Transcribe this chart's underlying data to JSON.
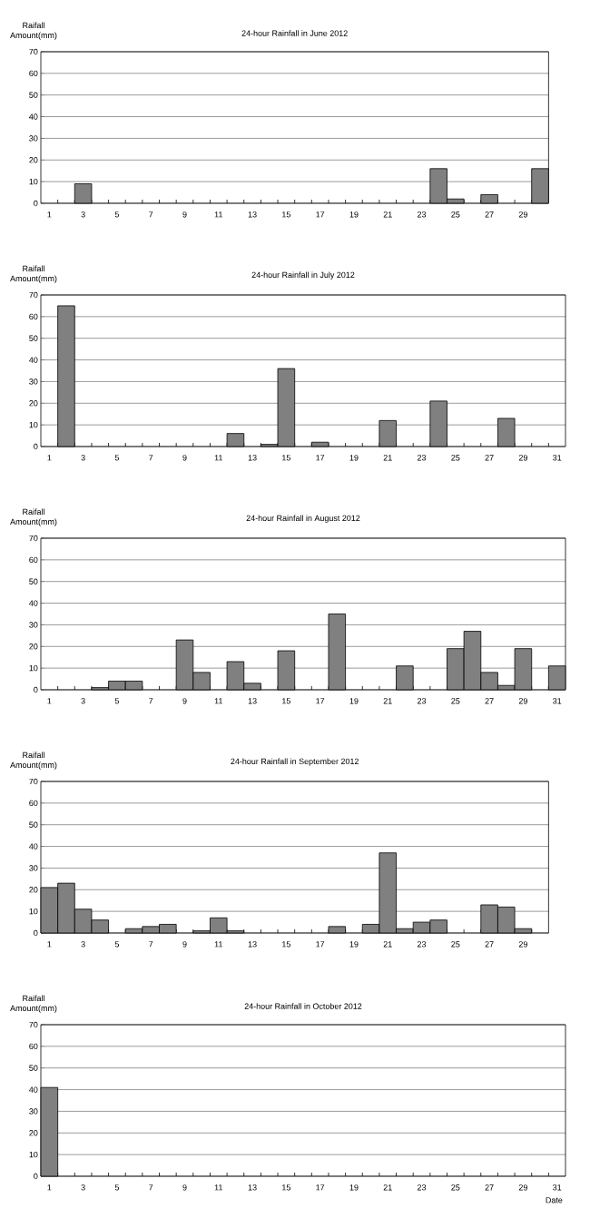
{
  "chart_data": [
    {
      "type": "bar",
      "title": "24-hour Rainfall in June 2012",
      "ylabel": "Raifall Amount(mm)",
      "categories": [
        "1",
        null,
        "3",
        null,
        "5",
        null,
        "7",
        null,
        "9",
        null,
        "11",
        null,
        "13",
        null,
        "15",
        null,
        "17",
        null,
        "19",
        null,
        "21",
        null,
        "23",
        null,
        "25",
        null,
        "27",
        null,
        "29",
        null
      ],
      "values": [
        0,
        0,
        9,
        0,
        0,
        0,
        0,
        0,
        0,
        0,
        0,
        0,
        0,
        0,
        0,
        0,
        0,
        0,
        0,
        0,
        0,
        0,
        0,
        16,
        2,
        0,
        4,
        0,
        0,
        16
      ],
      "color": "#808080",
      "ylim": [
        0,
        70
      ],
      "yticks": [
        0,
        10,
        20,
        30,
        40,
        50,
        60,
        70
      ],
      "grid": "y"
    },
    {
      "type": "bar",
      "title": "24-hour Rainfall in July 2012",
      "ylabel": "Raifall Amount(mm)",
      "categories": [
        "1",
        null,
        "3",
        null,
        "5",
        null,
        "7",
        null,
        "9",
        null,
        "11",
        null,
        "13",
        null,
        "15",
        null,
        "17",
        null,
        "19",
        null,
        "21",
        null,
        "23",
        null,
        "25",
        null,
        "27",
        null,
        "29",
        null,
        "31"
      ],
      "values": [
        0,
        65,
        0,
        0,
        0,
        0,
        0,
        0,
        0,
        0,
        0,
        6,
        0,
        1,
        36,
        0,
        2,
        0,
        0,
        0,
        12,
        0,
        0,
        21,
        0,
        0,
        0,
        13,
        0,
        0,
        0
      ],
      "color": "#808080",
      "ylim": [
        0,
        70
      ],
      "yticks": [
        0,
        10,
        20,
        30,
        40,
        50,
        60,
        70
      ],
      "grid": "y"
    },
    {
      "type": "bar",
      "title": "24-hour Rainfall in August 2012",
      "ylabel": "Raifall Amount(mm)",
      "categories": [
        "1",
        null,
        "3",
        null,
        "5",
        null,
        "7",
        null,
        "9",
        null,
        "11",
        null,
        "13",
        null,
        "15",
        null,
        "17",
        null,
        "19",
        null,
        "21",
        null,
        "23",
        null,
        "25",
        null,
        "27",
        null,
        "29",
        null,
        "31"
      ],
      "values": [
        0,
        0,
        0,
        1,
        4,
        4,
        0,
        0,
        23,
        8,
        0,
        13,
        3,
        0,
        18,
        0,
        0,
        35,
        0,
        0,
        0,
        11,
        0,
        0,
        19,
        27,
        8,
        2,
        19,
        0,
        11
      ],
      "color": "#808080",
      "ylim": [
        0,
        70
      ],
      "yticks": [
        0,
        10,
        20,
        30,
        40,
        50,
        60,
        70
      ],
      "grid": "y"
    },
    {
      "type": "bar",
      "title": "24-hour Rainfall in September 2012",
      "ylabel": "Raifall Amount(mm)",
      "categories": [
        "1",
        null,
        "3",
        null,
        "5",
        null,
        "7",
        null,
        "9",
        null,
        "11",
        null,
        "13",
        null,
        "15",
        null,
        "17",
        null,
        "19",
        null,
        "21",
        null,
        "23",
        null,
        "25",
        null,
        "27",
        null,
        "29",
        null
      ],
      "values": [
        21,
        23,
        11,
        6,
        0,
        2,
        3,
        4,
        0,
        1,
        7,
        1,
        0,
        0,
        0,
        0,
        0,
        3,
        0,
        4,
        37,
        2,
        5,
        6,
        0,
        0,
        13,
        12,
        2,
        0
      ],
      "color": "#808080",
      "ylim": [
        0,
        70
      ],
      "yticks": [
        0,
        10,
        20,
        30,
        40,
        50,
        60,
        70
      ],
      "grid": "y"
    },
    {
      "type": "bar",
      "title": "24-hour Rainfall in October 2012",
      "ylabel": "Raifall Amount(mm)",
      "xlabel": "Date",
      "categories": [
        "1",
        null,
        "3",
        null,
        "5",
        null,
        "7",
        null,
        "9",
        null,
        "11",
        null,
        "13",
        null,
        "15",
        null,
        "17",
        null,
        "19",
        null,
        "21",
        null,
        "23",
        null,
        "25",
        null,
        "27",
        null,
        "29",
        null,
        "31"
      ],
      "values": [
        41,
        0,
        0,
        0,
        0,
        0,
        0,
        0,
        0,
        0,
        0,
        0,
        0,
        0,
        0,
        0,
        0,
        0,
        0,
        0,
        0,
        0,
        0,
        0,
        0,
        0,
        0,
        0,
        0,
        0,
        0
      ],
      "color": "#808080",
      "ylim": [
        0,
        70
      ],
      "yticks": [
        0,
        10,
        20,
        30,
        40,
        50,
        60,
        70
      ],
      "grid": "y"
    }
  ]
}
